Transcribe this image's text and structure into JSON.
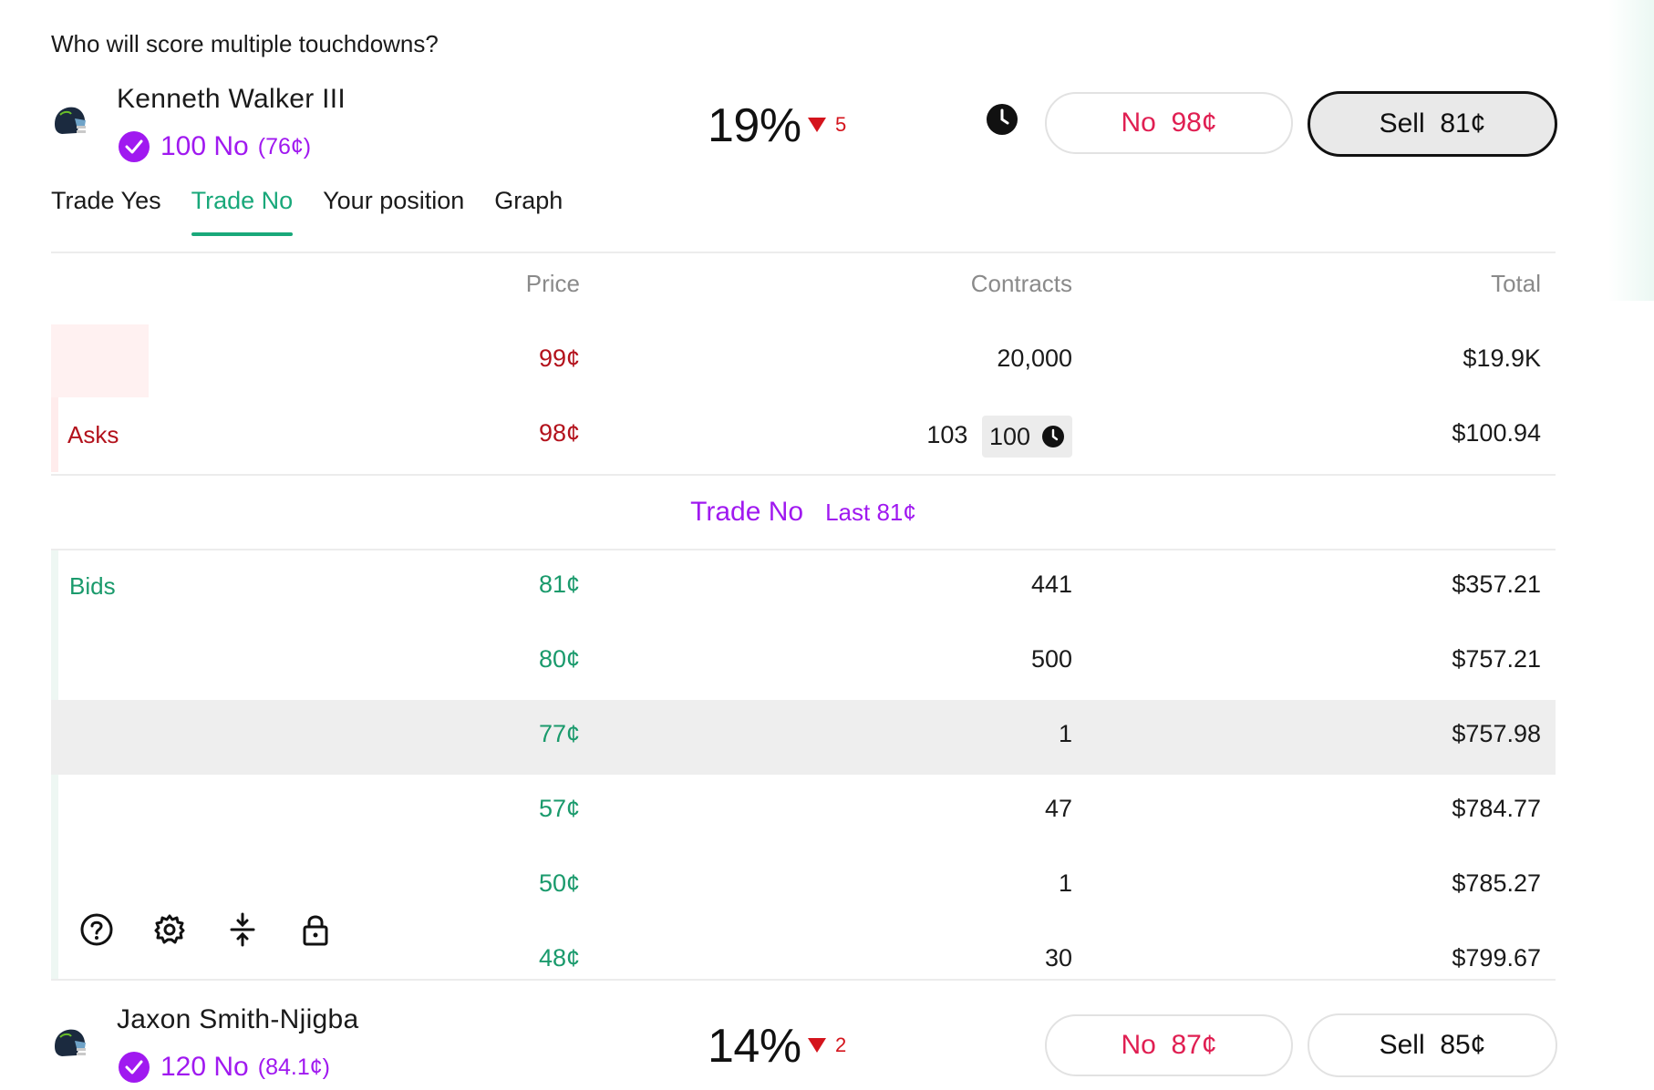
{
  "question": "Who will score multiple touchdowns?",
  "markets": [
    {
      "player": "Kenneth Walker III",
      "position_qty": "100 No",
      "position_avg": "(76¢)",
      "chance": "19%",
      "change": "5",
      "no_label": "No",
      "no_price": "98¢",
      "sell_label": "Sell",
      "sell_price": "81¢"
    },
    {
      "player": "Jaxon Smith-Njigba",
      "position_qty": "120 No",
      "position_avg": "(84.1¢)",
      "chance": "14%",
      "change": "2",
      "no_label": "No",
      "no_price": "87¢",
      "sell_label": "Sell",
      "sell_price": "85¢"
    }
  ],
  "tabs": [
    "Trade Yes",
    "Trade No",
    "Your position",
    "Graph"
  ],
  "active_tab": "Trade No",
  "book": {
    "headers": {
      "price": "Price",
      "contracts": "Contracts",
      "total": "Total"
    },
    "asks_label": "Asks",
    "bids_label": "Bids",
    "asks": [
      {
        "price": "99¢",
        "contracts": "20,000",
        "total": "$19.9K"
      },
      {
        "price": "98¢",
        "contracts": "103",
        "resting": "100",
        "total": "$100.94"
      }
    ],
    "mid_title": "Trade No",
    "mid_last": "Last 81¢",
    "bids": [
      {
        "price": "81¢",
        "contracts": "441",
        "total": "$357.21"
      },
      {
        "price": "80¢",
        "contracts": "500",
        "total": "$757.21"
      },
      {
        "price": "77¢",
        "contracts": "1",
        "total": "$757.98"
      },
      {
        "price": "57¢",
        "contracts": "47",
        "total": "$784.77"
      },
      {
        "price": "50¢",
        "contracts": "1",
        "total": "$785.27"
      },
      {
        "price": "48¢",
        "contracts": "30",
        "total": "$799.67"
      }
    ]
  },
  "colors": {
    "accent_purple": "#a019f0",
    "ask_red": "#b3121c",
    "bid_green": "#1a9a6c",
    "no_pink": "#e01f52",
    "tab_green": "#19a87a"
  },
  "icons": [
    "help-icon",
    "settings-icon",
    "compress-icon",
    "lock-icon",
    "clock-icon",
    "checkmark-icon",
    "helmet-icon",
    "down-triangle-icon"
  ]
}
